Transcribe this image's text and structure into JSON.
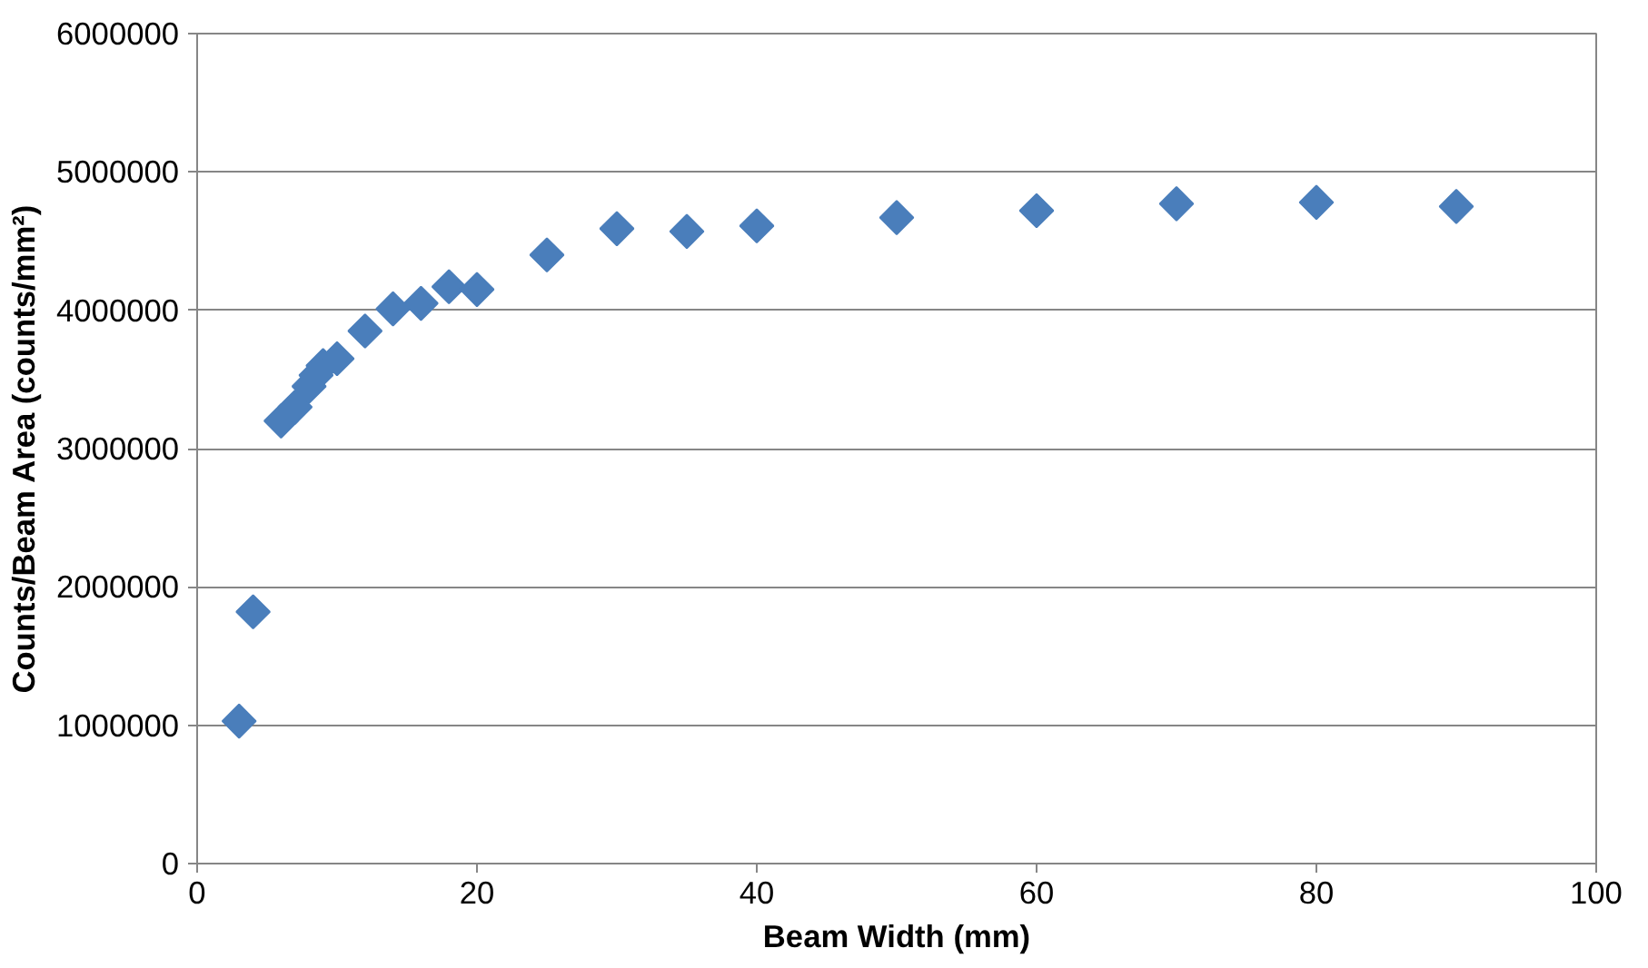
{
  "chart_data": {
    "type": "scatter",
    "xlabel": "Beam Width (mm)",
    "ylabel": "Counts/Beam Area (counts/mm²)",
    "x": [
      3,
      4,
      6,
      7,
      8,
      8.5,
      9,
      10,
      12,
      14,
      16,
      18,
      20,
      25,
      30,
      35,
      40,
      50,
      60,
      70,
      80,
      90
    ],
    "values": [
      1030000,
      1820000,
      3200000,
      3300000,
      3450000,
      3530000,
      3600000,
      3650000,
      3850000,
      4010000,
      4050000,
      4170000,
      4150000,
      4400000,
      4590000,
      4570000,
      4610000,
      4670000,
      4720000,
      4770000,
      4780000,
      4750000
    ],
    "color": "#4a7ebb",
    "marker": "diamond",
    "xlim": [
      0,
      100
    ],
    "xticks": [
      0,
      20,
      40,
      60,
      80,
      100
    ],
    "ylim": [
      0,
      6000000
    ],
    "yticks": [
      0,
      1000000,
      2000000,
      3000000,
      4000000,
      5000000,
      6000000
    ],
    "grid": "y"
  }
}
